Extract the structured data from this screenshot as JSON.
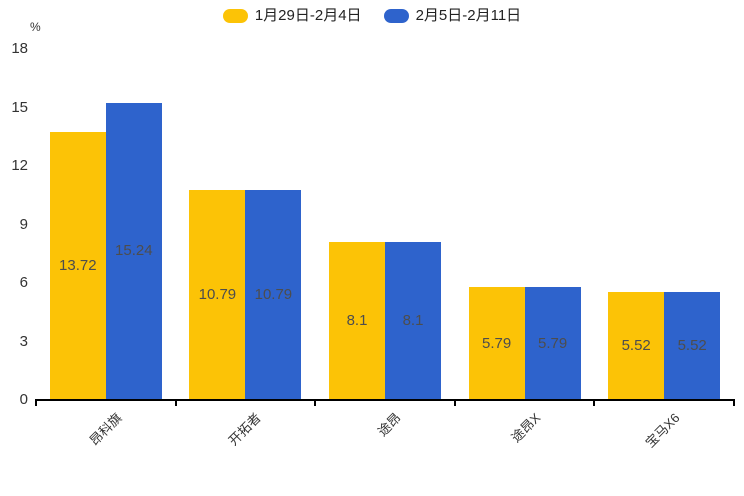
{
  "chart_data": {
    "type": "bar",
    "title": "",
    "xlabel": "",
    "ylabel": "%",
    "ylim": [
      0,
      18
    ],
    "yticks": [
      0,
      3,
      6,
      9,
      12,
      15,
      18
    ],
    "grid": false,
    "legend_position": "top-center",
    "categories": [
      "昂科旗",
      "开拓者",
      "途昂",
      "途昂X",
      "宝马X6"
    ],
    "series": [
      {
        "name": "1月29日-2月4日",
        "color": "#FCC306",
        "values": [
          13.72,
          10.79,
          8.1,
          5.79,
          5.52
        ]
      },
      {
        "name": "2月5日-2月11日",
        "color": "#2E63CC",
        "values": [
          15.24,
          10.79,
          8.1,
          5.79,
          5.52
        ]
      }
    ],
    "value_label_color": "#4d4d4d",
    "axis_color": "#000000",
    "tick_label_color": "#333333"
  }
}
